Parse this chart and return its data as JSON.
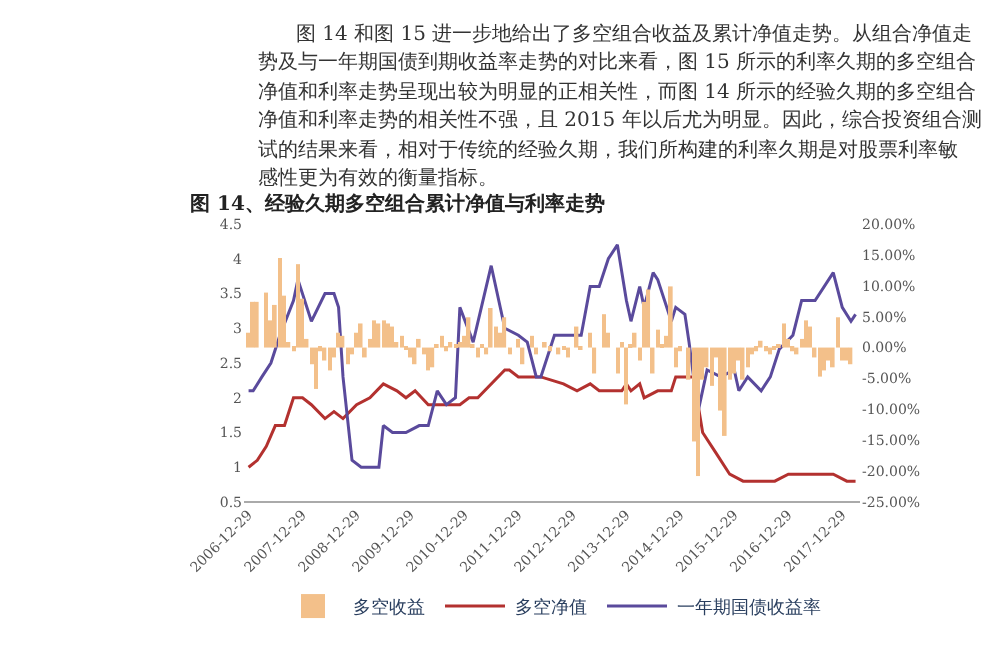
{
  "chart_data": {
    "type": "line",
    "title": "图 14、经验久期多空组合累计净值与利率走势",
    "annotations": [
      "图 14 和图 15 进一步地给出了多空组合收益及累计净值走势。从组合净值走",
      "势及与一年期国债到期收益率走势的对比来看，图 15 所示的利率久期的多空组合",
      "净值和利率走势呈现出较为明显的正相关性，而图 14 所示的经验久期的多空组合",
      "净值和利率走势的相关性不强，且 2015 年以后尤为明显。因此，综合投资组合测",
      "试的结果来看，相对于传统的经验久期，我们所构建的利率久期是对股票利率敏",
      "感性更为有效的衡量指标。"
    ],
    "series": [
      {
        "name": "多空收益",
        "type": "bar",
        "axis": "y2",
        "color": "#f3c08a",
        "x": [
          "2007-01",
          "2007-02",
          "2007-03",
          "2007-05",
          "2007-06",
          "2007-07",
          "2007-08",
          "2007-09",
          "2007-10",
          "2007-11",
          "2007-12",
          "2008-01",
          "2008-02",
          "2008-03",
          "2008-04",
          "2008-05",
          "2008-06",
          "2008-07",
          "2008-08",
          "2008-09",
          "2008-10",
          "2008-11",
          "2008-12",
          "2009-01",
          "2009-02",
          "2009-03",
          "2009-04",
          "2009-05",
          "2009-06",
          "2009-07",
          "2009-08",
          "2009-09",
          "2009-10",
          "2009-11",
          "2009-12",
          "2010-01",
          "2010-02",
          "2010-03",
          "2010-04",
          "2010-05",
          "2010-06",
          "2010-07",
          "2010-08",
          "2010-09",
          "2010-10",
          "2010-11",
          "2010-12",
          "2011-01",
          "2011-02",
          "2011-03",
          "2011-04",
          "2011-05",
          "2011-06",
          "2011-07",
          "2011-08",
          "2011-09",
          "2011-10",
          "2011-11",
          "2012-01",
          "2012-02",
          "2012-04",
          "2012-05",
          "2012-07",
          "2012-08",
          "2012-10",
          "2012-11",
          "2012-12",
          "2013-02",
          "2013-03",
          "2013-05",
          "2013-06",
          "2013-08",
          "2013-09",
          "2013-11",
          "2013-12",
          "2014-01",
          "2014-02",
          "2014-03",
          "2014-04",
          "2014-05",
          "2014-06",
          "2014-07",
          "2014-08",
          "2014-09",
          "2014-10",
          "2014-11",
          "2014-12",
          "2015-01",
          "2015-03",
          "2015-04",
          "2015-05",
          "2015-06",
          "2015-07",
          "2015-08",
          "2015-09",
          "2015-10",
          "2015-11",
          "2015-12",
          "2016-01",
          "2016-02",
          "2016-03",
          "2016-04",
          "2016-05",
          "2016-06",
          "2016-07",
          "2016-08",
          "2016-09",
          "2016-10",
          "2016-11",
          "2016-12",
          "2017-01",
          "2017-02",
          "2017-03",
          "2017-04",
          "2017-05",
          "2017-06",
          "2017-07",
          "2017-08",
          "2017-09",
          "2017-10",
          "2017-11",
          "2017-12",
          "2018-01",
          "2018-02",
          "2018-03"
        ],
        "values": [
          2.4,
          7.4,
          7.4,
          8.9,
          4.4,
          6.9,
          14.5,
          8.4,
          0.9,
          -0.6,
          13.5,
          7.9,
          1.4,
          -2.7,
          -6.7,
          -0.6,
          -2.1,
          -3.7,
          -1.6,
          2.4,
          1.9,
          -2.7,
          -1.1,
          2.4,
          3.9,
          -1.6,
          1.4,
          4.4,
          3.9,
          4.4,
          3.9,
          3.4,
          0.9,
          1.9,
          -0.1,
          -1.6,
          -2.7,
          1.4,
          -1.1,
          -3.7,
          -3.2,
          0.4,
          1.9,
          -0.6,
          0.9,
          0.4,
          0.9,
          1.9,
          4.9,
          0.4,
          -1.6,
          0.4,
          -1.1,
          6.4,
          3.4,
          2.4,
          4.9,
          -1.1,
          1.4,
          -2.7,
          1.9,
          -1.1,
          0.9,
          -0.6,
          -1.1,
          -0.1,
          -1.6,
          3.4,
          -0.1,
          2.4,
          -4.2,
          5.4,
          2.4,
          -4.2,
          0.9,
          -9.2,
          0.4,
          2.4,
          -2.1,
          7.4,
          9.4,
          -4.2,
          2.9,
          0.4,
          1.9,
          9.9,
          -3.2,
          -0.6,
          -5.2,
          -15.2,
          -20.8,
          -5.2,
          -3.2,
          -6.2,
          -1.6,
          -10.2,
          -14.3,
          -5.2,
          -4.2,
          -2.1,
          -5.2,
          -3.2,
          -1.1,
          -0.6,
          1.1,
          -0.6,
          -1.1,
          -0.1,
          0.4,
          3.9,
          1.4,
          -0.6,
          -1.1,
          1.4,
          4.4,
          3.4,
          -1.6,
          -4.7,
          -3.7,
          -2.1,
          -3.2,
          4.9,
          -2.1,
          -2.1,
          -2.7
        ]
      },
      {
        "name": "多空净值",
        "color": "#b3312f",
        "x": [
          "2007-01",
          "2007-03",
          "2007-05",
          "2007-07",
          "2007-09",
          "2007-11",
          "2008-01",
          "2008-03",
          "2008-06",
          "2008-08",
          "2008-10",
          "2009-01",
          "2009-04",
          "2009-07",
          "2009-10",
          "2009-12",
          "2010-02",
          "2010-05",
          "2010-08",
          "2010-12",
          "2011-02",
          "2011-04",
          "2011-10",
          "2011-11",
          "2012-01",
          "2012-03",
          "2012-06",
          "2012-11",
          "2013-02",
          "2013-05",
          "2013-07",
          "2013-12",
          "2014-01",
          "2014-02",
          "2014-04",
          "2014-05",
          "2014-08",
          "2014-11",
          "2014-12",
          "2015-02",
          "2015-04",
          "2015-05",
          "2015-06",
          "2015-09",
          "2015-12",
          "2016-03",
          "2016-07",
          "2016-10",
          "2017-01",
          "2017-04",
          "2017-07",
          "2017-09",
          "2017-11",
          "2018-02",
          "2018-04"
        ],
        "values": [
          1.0,
          1.1,
          1.3,
          1.6,
          1.6,
          2.0,
          2.0,
          1.9,
          1.7,
          1.8,
          1.7,
          1.9,
          2.0,
          2.2,
          2.1,
          2.0,
          2.1,
          1.9,
          1.9,
          1.9,
          2.0,
          2.0,
          2.4,
          2.4,
          2.3,
          2.3,
          2.3,
          2.2,
          2.1,
          2.2,
          2.1,
          2.1,
          2.2,
          2.1,
          2.2,
          2.0,
          2.1,
          2.1,
          2.3,
          2.3,
          2.3,
          1.9,
          1.5,
          1.2,
          0.9,
          0.8,
          0.8,
          0.8,
          0.9,
          0.9,
          0.9,
          0.9,
          0.9,
          0.8,
          0.8
        ]
      },
      {
        "name": "一年期国债收益率",
        "color": "#5a4a9c",
        "x": [
          "2007-01",
          "2007-02",
          "2007-04",
          "2007-06",
          "2007-08",
          "2007-11",
          "2007-12",
          "2008-03",
          "2008-06",
          "2008-08",
          "2008-09",
          "2008-10",
          "2008-12",
          "2009-02",
          "2009-04",
          "2009-06",
          "2009-07",
          "2009-09",
          "2009-12",
          "2010-03",
          "2010-05",
          "2010-07",
          "2010-09",
          "2010-11",
          "2010-12",
          "2011-03",
          "2011-07",
          "2011-10",
          "2012-01",
          "2012-03",
          "2012-05",
          "2012-06",
          "2012-09",
          "2012-12",
          "2013-03",
          "2013-05",
          "2013-07",
          "2013-09",
          "2013-11",
          "2014-01",
          "2014-02",
          "2014-04",
          "2014-05",
          "2014-07",
          "2014-08",
          "2014-11",
          "2014-12",
          "2015-02",
          "2015-03",
          "2015-05",
          "2015-07",
          "2015-10",
          "2016-01",
          "2016-02",
          "2016-04",
          "2016-07",
          "2016-09",
          "2016-11",
          "2017-02",
          "2017-04",
          "2017-07",
          "2017-11",
          "2018-01",
          "2018-03",
          "2018-04"
        ],
        "values": [
          2.1,
          2.1,
          2.3,
          2.5,
          2.9,
          3.4,
          3.7,
          3.1,
          3.5,
          3.5,
          3.3,
          2.3,
          1.1,
          1.0,
          1.0,
          1.0,
          1.6,
          1.5,
          1.5,
          1.6,
          1.6,
          2.1,
          1.9,
          2.0,
          3.3,
          2.8,
          3.9,
          3.0,
          2.9,
          2.8,
          2.3,
          2.3,
          2.9,
          2.9,
          2.9,
          3.6,
          3.6,
          4.0,
          4.2,
          3.4,
          3.1,
          3.6,
          3.3,
          3.8,
          3.7,
          3.1,
          3.3,
          3.2,
          2.8,
          1.8,
          2.4,
          2.3,
          2.4,
          2.1,
          2.3,
          2.1,
          2.3,
          2.7,
          2.9,
          3.4,
          3.4,
          3.8,
          3.3,
          3.1,
          3.2
        ]
      }
    ],
    "xlim": [
      "2006-12-01",
      "2018-05-01"
    ],
    "xticks": [
      "2006-12-29",
      "2007-12-29",
      "2008-12-29",
      "2009-12-29",
      "2010-12-29",
      "2011-12-29",
      "2012-12-29",
      "2013-12-29",
      "2014-12-29",
      "2015-12-29",
      "2016-12-29",
      "2017-12-29"
    ],
    "ylim": [
      0.5,
      4.5
    ],
    "yticks": [
      0.5,
      1,
      1.5,
      2,
      2.5,
      3,
      3.5,
      4,
      4.5
    ],
    "y2lim": [
      -25,
      20
    ],
    "y2ticks": [
      {
        "value": -25,
        "label": "-25.00%"
      },
      {
        "value": -20,
        "label": "-20.00%"
      },
      {
        "value": -15,
        "label": "-15.00%"
      },
      {
        "value": -10,
        "label": "-10.00%"
      },
      {
        "value": -5,
        "label": "-5.00%"
      },
      {
        "value": 0,
        "label": "0.00%"
      },
      {
        "value": 5,
        "label": "5.00%"
      },
      {
        "value": 10,
        "label": "10.00%"
      },
      {
        "value": 15,
        "label": "15.00%"
      },
      {
        "value": 20,
        "label": "20.00%"
      }
    ],
    "grid": false,
    "legend": "bottom"
  }
}
